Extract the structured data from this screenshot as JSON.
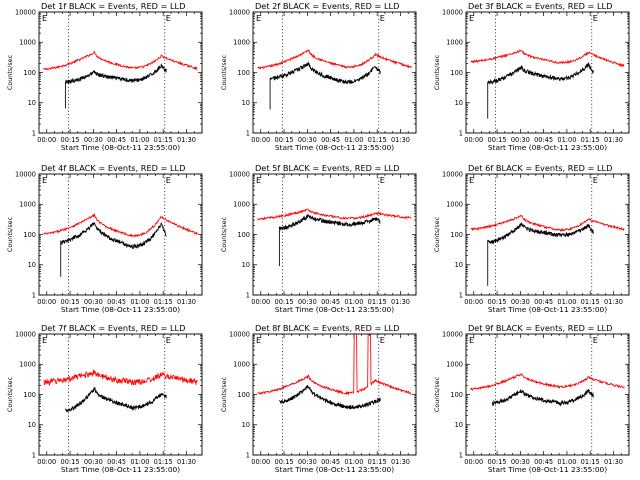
{
  "chart_data": {
    "type": "line",
    "layout": "grid-3x3",
    "scale_y": "log",
    "ylim": [
      1,
      10000
    ],
    "xlim_minutes": [
      -5,
      100
    ],
    "x_ticks": [
      "00:00",
      "00:15",
      "00:30",
      "00:45",
      "01:00",
      "01:15",
      "01:30"
    ],
    "y_ticks": [
      "1",
      "10",
      "100",
      "1000",
      "10000"
    ],
    "ylabel": "Counts/sec",
    "xlabel": "Start Time (08-Oct-11 23:55:00)",
    "marker_label": "E",
    "vertical_lines_minutes": [
      14,
      76
    ],
    "colors": {
      "events": "#000000",
      "lld": "#ff0000"
    },
    "panels": [
      {
        "title": "Det 1f BLACK = Events, RED = LLD",
        "events": {
          "start": 12,
          "end": 77,
          "base": 48,
          "peak_x": 31,
          "peak_y": 105,
          "valley_x": 55,
          "valley_y": 55,
          "peak2_x": 74,
          "peak2_y": 175,
          "end_y": 115,
          "spike_y": 6.5
        },
        "lld": {
          "start": -2,
          "end": 97,
          "base": 128,
          "peak_x": 31,
          "peak_y": 470,
          "valley_x": 55,
          "valley_y": 140,
          "peak2_x": 74,
          "peak2_y": 360,
          "end_y": 135
        }
      },
      {
        "title": "Det 2f BLACK = Events, RED = LLD",
        "events": {
          "start": 6,
          "end": 77,
          "base": 65,
          "peak_x": 31,
          "peak_y": 200,
          "valley_x": 55,
          "valley_y": 48,
          "peak2_x": 74,
          "peak2_y": 165,
          "end_y": 100,
          "spike_y": 6
        },
        "lld": {
          "start": -2,
          "end": 97,
          "base": 140,
          "peak_x": 31,
          "peak_y": 550,
          "valley_x": 55,
          "valley_y": 150,
          "peak2_x": 74,
          "peak2_y": 400,
          "end_y": 150
        }
      },
      {
        "title": "Det 3f BLACK = Events, RED = LLD",
        "events": {
          "start": 9,
          "end": 77,
          "base": 48,
          "peak_x": 31,
          "peak_y": 150,
          "valley_x": 55,
          "valley_y": 62,
          "peak2_x": 74,
          "peak2_y": 190,
          "end_y": 105,
          "spike_y": 3
        },
        "lld": {
          "start": -2,
          "end": 97,
          "base": 230,
          "peak_x": 31,
          "peak_y": 540,
          "valley_x": 55,
          "valley_y": 210,
          "peak2_x": 74,
          "peak2_y": 470,
          "end_y": 165
        }
      },
      {
        "title": "Det 4f BLACK = Events, RED = LLD",
        "events": {
          "start": 9,
          "end": 77,
          "base": 55,
          "peak_x": 31,
          "peak_y": 250,
          "valley_x": 55,
          "valley_y": 40,
          "peak2_x": 74,
          "peak2_y": 230,
          "end_y": 100,
          "spike_y": 4
        },
        "lld": {
          "start": -2,
          "end": 97,
          "base": 105,
          "peak_x": 31,
          "peak_y": 450,
          "valley_x": 55,
          "valley_y": 90,
          "peak2_x": 74,
          "peak2_y": 400,
          "end_y": 105
        }
      },
      {
        "title": "Det 5f BLACK = Events, RED = LLD",
        "events": {
          "start": 12,
          "end": 77,
          "base": 160,
          "peak_x": 31,
          "peak_y": 430,
          "valley_x": 55,
          "valley_y": 220,
          "peak2_x": 74,
          "peak2_y": 330,
          "end_y": 270,
          "spike_y": 9
        },
        "lld": {
          "start": -2,
          "end": 97,
          "base": 330,
          "peak_x": 31,
          "peak_y": 680,
          "valley_x": 55,
          "valley_y": 340,
          "peak2_x": 74,
          "peak2_y": 510,
          "end_y": 350
        }
      },
      {
        "title": "Det 6f BLACK = Events, RED = LLD",
        "events": {
          "start": 9,
          "end": 77,
          "base": 55,
          "peak_x": 31,
          "peak_y": 220,
          "valley_x": 55,
          "valley_y": 95,
          "peak2_x": 74,
          "peak2_y": 210,
          "end_y": 120,
          "spike_y": 2
        },
        "lld": {
          "start": -2,
          "end": 97,
          "base": 150,
          "peak_x": 31,
          "peak_y": 420,
          "valley_x": 55,
          "valley_y": 140,
          "peak2_x": 74,
          "peak2_y": 330,
          "end_y": 145
        }
      },
      {
        "title": "Det 7f BLACK = Events, RED = LLD",
        "events": {
          "start": 12,
          "end": 77,
          "base": 30,
          "peak_x": 31,
          "peak_y": 160,
          "valley_x": 55,
          "valley_y": 38,
          "peak2_x": 74,
          "peak2_y": 110,
          "end_y": 85,
          "spike_y": null
        },
        "lld": {
          "start": -2,
          "end": 97,
          "base": 260,
          "peak_x": 31,
          "peak_y": 560,
          "valley_x": 55,
          "valley_y": 260,
          "peak2_x": 74,
          "peak2_y": 460,
          "end_y": 260
        }
      },
      {
        "title": "Det 8f BLACK = Events, RED = LLD",
        "events": {
          "start": 12,
          "end": 77,
          "base": 55,
          "peak_x": 31,
          "peak_y": 195,
          "valley_x": 55,
          "valley_y": 38,
          "peak2_x": 74,
          "peak2_y": 60,
          "end_y": 70,
          "spike_y": null
        },
        "lld": {
          "start": -2,
          "end": 97,
          "base": 110,
          "peak_x": 31,
          "peak_y": 410,
          "valley_x": 55,
          "valley_y": 110,
          "peak2_x": 74,
          "peak2_y": 300,
          "end_y": 110,
          "bursts": [
            [
              60,
              62
            ],
            [
              69,
              71
            ]
          ],
          "burst_level": 10000
        }
      },
      {
        "title": "Det 9f BLACK = Events, RED = LLD",
        "events": {
          "start": 12,
          "end": 77,
          "base": 52,
          "peak_x": 31,
          "peak_y": 140,
          "valley_x": 55,
          "valley_y": 52,
          "peak2_x": 74,
          "peak2_y": 140,
          "end_y": 90,
          "spike_y": null
        },
        "lld": {
          "start": -2,
          "end": 97,
          "base": 150,
          "peak_x": 31,
          "peak_y": 490,
          "valley_x": 55,
          "valley_y": 180,
          "peak2_x": 74,
          "peak2_y": 370,
          "end_y": 170
        }
      }
    ]
  }
}
